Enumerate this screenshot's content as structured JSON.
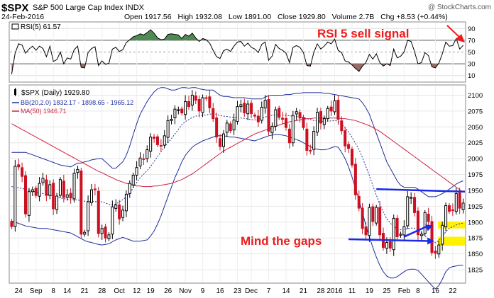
{
  "header": {
    "symbol": "$SPX",
    "name": "S&P 500 Large Cap Index",
    "exchange": "INDX",
    "credit": "@ StockCharts.com",
    "date": "24-Feb-2016",
    "open_label": "Open",
    "open": "1917.56",
    "high_label": "High",
    "high": "1932.08",
    "low_label": "Low",
    "low": "1891.00",
    "close_label": "Close",
    "close": "1929.80",
    "volume_label": "Volume",
    "volume": "2.7B",
    "chg_label": "Chg",
    "chg": "+8.53 (+0.44%)"
  },
  "rsi_panel": {
    "label": "RSI(5) 61.57",
    "ticks": [
      90,
      70,
      50,
      30,
      10
    ],
    "annotation": "RSI 5 sell signal"
  },
  "price_panel": {
    "legend": [
      {
        "text": "$SPX (Daily) 1929.80",
        "color": "#000000",
        "marker": "candle"
      },
      {
        "text": "BB(20,2.0) 1832.17 - 1898.65 - 1965.12",
        "color": "#1f2f9c",
        "marker": "line"
      },
      {
        "text": "MA(50) 1946.71",
        "color": "#cc2244",
        "marker": "line"
      }
    ],
    "ticks": [
      2100,
      2075,
      2050,
      2025,
      2000,
      1975,
      1950,
      1925,
      1900,
      1875,
      1850,
      1825
    ],
    "annotation": "Mind the gaps"
  },
  "x_labels": [
    "24",
    "Sep",
    "8",
    "14",
    "21",
    "28",
    "Oct",
    "12",
    "19",
    "26",
    "Nov",
    "9",
    "16",
    "23",
    "Dec",
    "7",
    "14",
    "21",
    "28",
    "2016",
    "11",
    "19",
    "25",
    "Feb",
    "8",
    "16",
    "22"
  ],
  "chart_data": {
    "type": "candlestick",
    "closes": [
      1893,
      1988,
      1987,
      1972,
      1913,
      1948,
      1951,
      1942,
      1961,
      1969,
      1942,
      1959,
      1921,
      1941,
      1967,
      1939,
      1943,
      1938,
      1977,
      1983,
      1881,
      1884,
      1932,
      1951,
      1951,
      1882,
      1890,
      1875,
      1880,
      1924,
      1927,
      1905,
      1919,
      1944,
      1961,
      1974,
      1986,
      2001,
      1999,
      2014,
      2034,
      2032,
      2022,
      2020,
      2036,
      2060,
      2062,
      2078,
      2077,
      2072,
      2090,
      2082,
      2100,
      2092,
      2075,
      2096,
      2095,
      2080,
      2063,
      2034,
      2019,
      2039,
      2056,
      2044,
      2061,
      2082,
      2085,
      2072,
      2086,
      2071,
      2067,
      2058,
      2081,
      2092,
      2043,
      2051,
      2077,
      2065,
      2062,
      2049,
      2025,
      2068,
      2074,
      2064,
      2049,
      2013,
      2012,
      2043,
      2073,
      2056,
      2063,
      2079,
      2075,
      2091,
      2062,
      2044,
      2020,
      2016,
      1990,
      1943,
      1922,
      1890,
      1880,
      1923,
      1901,
      1923,
      1880,
      1860,
      1868,
      1859,
      1906,
      1877,
      1881,
      1893,
      1940,
      1939,
      1915,
      1880,
      1881,
      1915,
      1901,
      1852,
      1851,
      1864,
      1895,
      1926,
      1917,
      1918,
      1945,
      1922,
      1930
    ],
    "bb_upper": [
      2010,
      2010,
      2010,
      2010,
      2010,
      2008,
      2006,
      2004,
      2002,
      2000,
      1998,
      1996,
      1994,
      1992,
      1990,
      1989,
      1988,
      1987,
      1990,
      1993,
      1993,
      1995,
      1996,
      1998,
      1999,
      2000,
      2000,
      1995,
      1990,
      1985,
      1985,
      1990,
      1995,
      2005,
      2020,
      2038,
      2055,
      2070,
      2080,
      2090,
      2098,
      2105,
      2110,
      2112,
      2112,
      2110,
      2108,
      2108,
      2110,
      2112,
      2112,
      2111,
      2112,
      2112,
      2110,
      2109,
      2108,
      2108,
      2108,
      2104,
      2100,
      2098,
      2098,
      2097,
      2096,
      2096,
      2096,
      2096,
      2095,
      2094,
      2094,
      2094,
      2094,
      2097,
      2099,
      2100,
      2100,
      2100,
      2100,
      2101,
      2101,
      2102,
      2103,
      2103,
      2104,
      2104,
      2104,
      2104,
      2104,
      2104,
      2103,
      2103,
      2102,
      2101,
      2100,
      2099,
      2098,
      2097,
      2096,
      2095,
      2094,
      2088,
      2080,
      2070,
      2055,
      2040,
      2025,
      2010,
      1995,
      1985,
      1975,
      1965,
      1958,
      1955,
      1955,
      1955,
      1955,
      1952,
      1948,
      1944,
      1940,
      1940,
      1940,
      1942,
      1945,
      1948,
      1952,
      1956,
      1960,
      1963,
      1965
    ],
    "bb_lower": [
      1902,
      1900,
      1898,
      1896,
      1894,
      1893,
      1892,
      1891,
      1890,
      1890,
      1890,
      1889,
      1888,
      1887,
      1886,
      1885,
      1884,
      1883,
      1880,
      1877,
      1874,
      1871,
      1869,
      1868,
      1866,
      1865,
      1864,
      1865,
      1866,
      1869,
      1872,
      1874,
      1876,
      1874,
      1872,
      1870,
      1870,
      1870,
      1871,
      1872,
      1878,
      1886,
      1897,
      1910,
      1925,
      1940,
      1955,
      1970,
      1982,
      1995,
      2005,
      2012,
      2018,
      2022,
      2025,
      2028,
      2030,
      2032,
      2034,
      2036,
      2036,
      2036,
      2035,
      2034,
      2034,
      2033,
      2032,
      2031,
      2030,
      2029,
      2028,
      2030,
      2032,
      2034,
      2036,
      2037,
      2038,
      2038,
      2037,
      2036,
      2034,
      2032,
      2030,
      2028,
      2025,
      2022,
      2019,
      2016,
      2015,
      2014,
      2014,
      2015,
      2017,
      2019,
      2018,
      2010,
      2000,
      1987,
      1971,
      1953,
      1935,
      1915,
      1895,
      1877,
      1860,
      1845,
      1832,
      1822,
      1815,
      1812,
      1812,
      1814,
      1818,
      1822,
      1825,
      1826,
      1826,
      1824,
      1818,
      1812,
      1806,
      1800,
      1795,
      1800,
      1810,
      1822,
      1828,
      1830,
      1831,
      1832,
      1832
    ],
    "ma50": [
      2055,
      2052,
      2049,
      2046,
      2043,
      2040,
      2037,
      2034,
      2031,
      2028,
      2025,
      2022,
      2019,
      2016,
      2013,
      2010,
      2007,
      2004,
      2001,
      1998,
      1995,
      1992,
      1989,
      1986,
      1983,
      1980,
      1978,
      1975,
      1972,
      1970,
      1967,
      1965,
      1963,
      1961,
      1960,
      1958,
      1957,
      1957,
      1956,
      1956,
      1956,
      1957,
      1957,
      1958,
      1959,
      1960,
      1961,
      1963,
      1965,
      1967,
      1970,
      1973,
      1976,
      1980,
      1984,
      1988,
      1992,
      1996,
      2000,
      2004,
      2008,
      2012,
      2015,
      2018,
      2021,
      2024,
      2027,
      2030,
      2033,
      2036,
      2039,
      2041,
      2043,
      2045,
      2047,
      2049,
      2051,
      2053,
      2055,
      2056,
      2058,
      2059,
      2060,
      2061,
      2062,
      2063,
      2063,
      2064,
      2064,
      2064,
      2064,
      2064,
      2064,
      2064,
      2064,
      2063,
      2063,
      2062,
      2061,
      2060,
      2058,
      2056,
      2054,
      2052,
      2049,
      2046,
      2043,
      2039,
      2035,
      2031,
      2027,
      2023,
      2019,
      2015,
      2011,
      2007,
      2003,
      1999,
      1995,
      1991,
      1987,
      1983,
      1979,
      1975,
      1971,
      1967,
      1963,
      1959,
      1955,
      1951,
      1947
    ],
    "rsi": [
      12,
      48,
      64,
      62,
      48,
      55,
      60,
      53,
      60,
      56,
      42,
      60,
      34,
      37,
      50,
      30,
      40,
      38,
      54,
      60,
      24,
      23,
      49,
      56,
      59,
      27,
      35,
      29,
      31,
      55,
      58,
      51,
      54,
      66,
      71,
      76,
      78,
      81,
      79,
      83,
      88,
      82,
      74,
      71,
      72,
      80,
      81,
      80,
      79,
      73,
      80,
      77,
      82,
      74,
      68,
      73,
      71,
      65,
      53,
      42,
      39,
      52,
      55,
      51,
      60,
      67,
      68,
      60,
      65,
      58,
      55,
      49,
      63,
      67,
      36,
      43,
      63,
      56,
      53,
      48,
      32,
      58,
      61,
      58,
      49,
      27,
      26,
      49,
      64,
      55,
      60,
      67,
      64,
      72,
      53,
      49,
      35,
      33,
      28,
      22,
      17,
      26,
      32,
      46,
      38,
      47,
      32,
      26,
      30,
      27,
      55,
      40,
      43,
      50,
      70,
      68,
      51,
      30,
      32,
      49,
      44,
      25,
      23,
      31,
      47,
      67,
      60,
      61,
      73,
      55,
      61.57
    ],
    "rsi_ylim": [
      0,
      100
    ],
    "price_ylim": [
      1805,
      2115
    ],
    "resistance_line": {
      "from": 1952,
      "to": 1948
    },
    "rising_trendline": {
      "from": 1877,
      "to": 1895
    },
    "gaps": [
      {
        "low": 1890,
        "high": 1901
      },
      {
        "low": 1863,
        "high": 1877
      }
    ]
  }
}
